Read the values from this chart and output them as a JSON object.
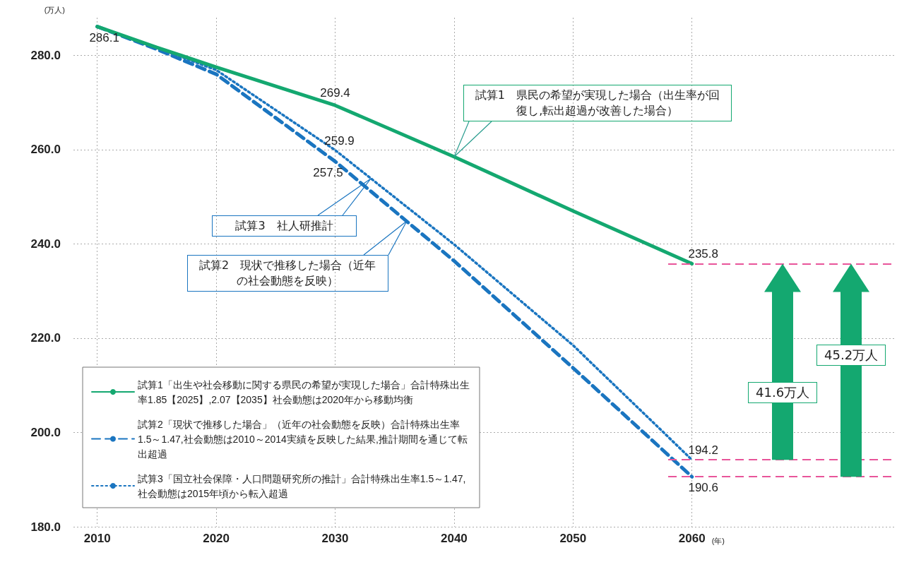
{
  "chart_data": {
    "type": "line",
    "x": [
      2010,
      2015,
      2020,
      2030,
      2040,
      2050,
      2060
    ],
    "xlim": [
      2008,
      2077
    ],
    "xticks": [
      2010,
      2020,
      2030,
      2040,
      2050,
      2060
    ],
    "ylim": [
      180,
      288
    ],
    "yticks": [
      {
        "value": 180,
        "label": "180.0"
      },
      {
        "value": 200,
        "label": "200.0"
      },
      {
        "value": 220,
        "label": "220.0"
      },
      {
        "value": 240,
        "label": "240.0"
      },
      {
        "value": 260,
        "label": "260.0"
      },
      {
        "value": 280,
        "label": "280.0"
      }
    ],
    "ylabel": "(万人)",
    "xlabel": "(年)",
    "grid": true,
    "legend": "bottom left",
    "marker": "none",
    "series": [
      {
        "name": "試算1「出生や社会移動に関する県民の希望が実現した場合」合計特殊出生率1.85【2025】,2.07【2035】社会動態は2020年から移動均衡",
        "color": "#14a870",
        "line_style": "solid",
        "values": [
          286.1,
          281.7,
          277.5,
          269.4,
          258.5,
          247.0,
          235.8
        ],
        "value_labels": [
          "286.1",
          null,
          null,
          "269.4",
          null,
          null,
          "235.8"
        ]
      },
      {
        "name": "試算2「現状で推移した場合」（近年の社会動態を反映）合計特殊出生率1.5～1.47,社会動態は2010～2014実績を反映した結果,推計期間を通じて転出超過",
        "color": "#1a75c0",
        "line_style": "dashed",
        "values": [
          286.1,
          281.3,
          276.0,
          257.5,
          236.4,
          213.7,
          190.6
        ],
        "value_labels": [
          null,
          null,
          null,
          "257.5",
          null,
          null,
          "190.6"
        ]
      },
      {
        "name": "試算3「国立社会保障・人口問題研究所の推計」合計特殊出生率1.5～1.47,社会動態は2015年頃から転入超過",
        "color": "#1a75c0",
        "line_style": "dotted",
        "values": [
          286.1,
          281.6,
          276.9,
          259.9,
          239.9,
          218.5,
          194.2
        ],
        "value_labels": [
          null,
          null,
          null,
          "259.9",
          null,
          null,
          "194.2"
        ]
      }
    ],
    "ref_lines": [
      {
        "axis": "y",
        "value": 235.8,
        "color": "#e8559a",
        "line_style": "dashed"
      },
      {
        "axis": "y",
        "value": 194.2,
        "color": "#e8559a",
        "line_style": "dashed"
      },
      {
        "axis": "y",
        "value": 190.6,
        "color": "#e8559a",
        "line_style": "dashed"
      }
    ],
    "annotations": [
      "試算1　県民の希望が実現した場合（出生率が回復し,転出超過が改善した場合）",
      "試算3　社人研推計",
      "試算2　現状で推移した場合（近年の社会動態を反映）",
      "41.6万人",
      "45.2万人"
    ]
  }
}
